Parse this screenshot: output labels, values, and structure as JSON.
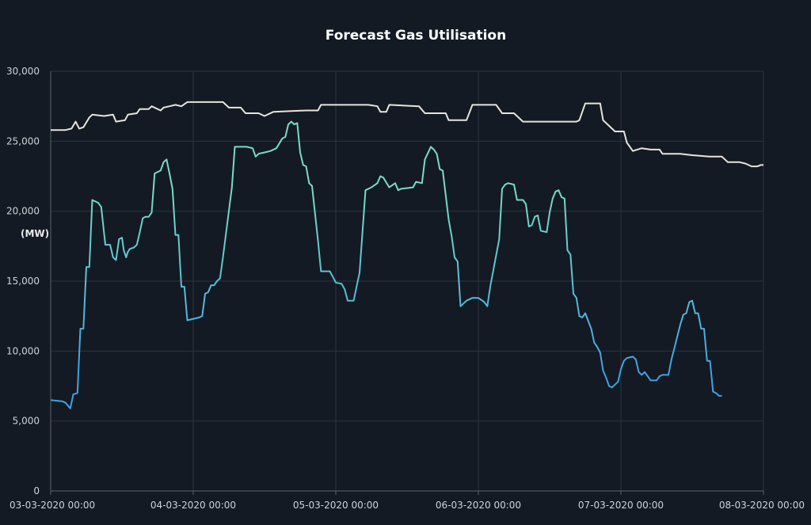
{
  "chart_data": {
    "type": "line",
    "title": "Forecast Gas Utilisation",
    "ylabel": "(MW)",
    "xlabel": "",
    "ylim": [
      0,
      30000
    ],
    "yticks": [
      0,
      5000,
      10000,
      15000,
      20000,
      25000,
      30000
    ],
    "ytick_labels": [
      "0",
      "5,000",
      "10,000",
      "15,000",
      "20,000",
      "25,000",
      "30,000"
    ],
    "xlim": [
      0,
      120
    ],
    "x_unit": "hours from 03-03-2020 00:00",
    "xticks": [
      0,
      24,
      48,
      72,
      96,
      120
    ],
    "xtick_labels": [
      "03-03-2020 00:00",
      "04-03-2020 00:00",
      "05-03-2020 00:00",
      "06-03-2020 00:00",
      "07-03-2020 00:00",
      "08-03-2020 00:00"
    ],
    "grid": true,
    "colors": {
      "background": "#131a24",
      "capacity_line": "#e8e4dc",
      "utilisation_high": "#79dcc4",
      "utilisation_low": "#3fa3e3"
    },
    "series": [
      {
        "points": [
          [
            0,
            25800
          ],
          [
            2.5,
            25800
          ],
          [
            3.5,
            25900
          ],
          [
            4.2,
            26400
          ],
          [
            4.8,
            25900
          ],
          [
            5.5,
            26000
          ],
          [
            6.5,
            26700
          ],
          [
            7,
            26900
          ],
          [
            9,
            26800
          ],
          [
            10.5,
            26900
          ],
          [
            11,
            26400
          ],
          [
            12.5,
            26500
          ],
          [
            13,
            26900
          ],
          [
            14.5,
            27000
          ],
          [
            15,
            27300
          ],
          [
            16.5,
            27300
          ],
          [
            17,
            27500
          ],
          [
            18.5,
            27200
          ],
          [
            19,
            27400
          ],
          [
            20,
            27500
          ],
          [
            21,
            27600
          ],
          [
            22,
            27500
          ],
          [
            23,
            27800
          ],
          [
            29,
            27800
          ],
          [
            30,
            27400
          ],
          [
            32,
            27400
          ],
          [
            32.8,
            27000
          ],
          [
            35,
            27000
          ],
          [
            36,
            26800
          ],
          [
            37.5,
            27100
          ],
          [
            43,
            27200
          ],
          [
            45,
            27200
          ],
          [
            45.5,
            27600
          ],
          [
            53.5,
            27600
          ],
          [
            55,
            27500
          ],
          [
            55.5,
            27100
          ],
          [
            56.5,
            27100
          ],
          [
            57,
            27600
          ],
          [
            62,
            27500
          ],
          [
            63,
            27000
          ],
          [
            66.5,
            27000
          ],
          [
            67,
            26500
          ],
          [
            68.5,
            26500
          ],
          [
            70,
            26500
          ],
          [
            71,
            27600
          ],
          [
            75,
            27600
          ],
          [
            76,
            27000
          ],
          [
            78,
            27000
          ],
          [
            79.5,
            26400
          ],
          [
            88.5,
            26400
          ],
          [
            89,
            26500
          ],
          [
            90,
            27700
          ],
          [
            92.5,
            27700
          ],
          [
            93,
            26500
          ],
          [
            94,
            26100
          ],
          [
            95,
            25700
          ],
          [
            96.5,
            25700
          ],
          [
            97,
            24900
          ],
          [
            98,
            24300
          ],
          [
            99.5,
            24500
          ],
          [
            101,
            24400
          ],
          [
            102.5,
            24400
          ],
          [
            103,
            24100
          ],
          [
            106,
            24100
          ],
          [
            108,
            24000
          ],
          [
            111,
            23900
          ],
          [
            113,
            23900
          ],
          [
            114,
            23500
          ],
          [
            116,
            23500
          ],
          [
            117,
            23400
          ],
          [
            118,
            23200
          ],
          [
            119,
            23200
          ],
          [
            119.5,
            23300
          ],
          [
            120,
            23300
          ]
        ]
      },
      {
        "points": [
          [
            0,
            6500
          ],
          [
            2,
            6400
          ],
          [
            2.5,
            6300
          ],
          [
            3.3,
            5900
          ],
          [
            3.8,
            6900
          ],
          [
            4.5,
            7000
          ],
          [
            5,
            11600
          ],
          [
            5.5,
            11600
          ],
          [
            6,
            16000
          ],
          [
            6.5,
            16000
          ],
          [
            7,
            20800
          ],
          [
            8,
            20600
          ],
          [
            8.5,
            20300
          ],
          [
            9.2,
            17600
          ],
          [
            10,
            17600
          ],
          [
            10.5,
            16700
          ],
          [
            11,
            16500
          ],
          [
            11.5,
            18000
          ],
          [
            12,
            18100
          ],
          [
            12.3,
            17200
          ],
          [
            12.7,
            16700
          ],
          [
            13,
            17100
          ],
          [
            13.3,
            17300
          ],
          [
            14,
            17400
          ],
          [
            14.5,
            17600
          ],
          [
            15,
            18500
          ],
          [
            15.5,
            19500
          ],
          [
            16,
            19600
          ],
          [
            16.5,
            19600
          ],
          [
            17,
            19900
          ],
          [
            17.5,
            22700
          ],
          [
            18.5,
            22900
          ],
          [
            19,
            23500
          ],
          [
            19.5,
            23700
          ],
          [
            20,
            22700
          ],
          [
            20.5,
            21600
          ],
          [
            21,
            18300
          ],
          [
            21.5,
            18300
          ],
          [
            22,
            14600
          ],
          [
            22.5,
            14600
          ],
          [
            23,
            12200
          ],
          [
            25,
            12400
          ],
          [
            25.5,
            12500
          ],
          [
            26,
            14100
          ],
          [
            26.5,
            14200
          ],
          [
            27,
            14700
          ],
          [
            27.5,
            14700
          ],
          [
            28,
            15000
          ],
          [
            28.5,
            15200
          ],
          [
            29,
            16700
          ],
          [
            30.5,
            21700
          ],
          [
            31,
            24600
          ],
          [
            33,
            24600
          ],
          [
            34,
            24500
          ],
          [
            34.5,
            23900
          ],
          [
            35,
            24100
          ],
          [
            36,
            24200
          ],
          [
            37,
            24300
          ],
          [
            38,
            24500
          ],
          [
            39,
            25200
          ],
          [
            39.5,
            25300
          ],
          [
            40,
            26200
          ],
          [
            40.5,
            26400
          ],
          [
            41,
            26200
          ],
          [
            41.5,
            26300
          ],
          [
            42,
            24200
          ],
          [
            42.5,
            23300
          ],
          [
            43,
            23200
          ],
          [
            43.5,
            22000
          ],
          [
            44,
            21800
          ],
          [
            45,
            17900
          ],
          [
            45.5,
            15700
          ],
          [
            47,
            15700
          ],
          [
            47.5,
            15300
          ],
          [
            48,
            14900
          ],
          [
            49,
            14800
          ],
          [
            49.5,
            14400
          ],
          [
            50,
            13600
          ],
          [
            51,
            13600
          ],
          [
            52,
            15600
          ],
          [
            53,
            21500
          ],
          [
            54,
            21700
          ],
          [
            55,
            22000
          ],
          [
            55.5,
            22500
          ],
          [
            56,
            22400
          ],
          [
            57,
            21700
          ],
          [
            58,
            22000
          ],
          [
            58.5,
            21500
          ],
          [
            59,
            21600
          ],
          [
            61,
            21700
          ],
          [
            61.5,
            22100
          ],
          [
            62.5,
            22000
          ],
          [
            63,
            23700
          ],
          [
            64,
            24600
          ],
          [
            64.5,
            24400
          ],
          [
            65,
            24100
          ],
          [
            65.5,
            23000
          ],
          [
            66,
            22900
          ],
          [
            67,
            19400
          ],
          [
            67.5,
            18200
          ],
          [
            68,
            16700
          ],
          [
            68.5,
            16400
          ],
          [
            69,
            13200
          ],
          [
            70,
            13600
          ],
          [
            71,
            13800
          ],
          [
            72,
            13800
          ],
          [
            73,
            13500
          ],
          [
            73.5,
            13200
          ],
          [
            74,
            14600
          ],
          [
            75.5,
            18000
          ],
          [
            76,
            21600
          ],
          [
            76.5,
            21900
          ],
          [
            77,
            22000
          ],
          [
            78,
            21900
          ],
          [
            78.5,
            20800
          ],
          [
            79.5,
            20800
          ],
          [
            80,
            20500
          ],
          [
            80.5,
            18900
          ],
          [
            81,
            19000
          ],
          [
            81.5,
            19600
          ],
          [
            82,
            19700
          ],
          [
            82.5,
            18600
          ],
          [
            83.5,
            18500
          ],
          [
            84,
            19900
          ],
          [
            84.5,
            20900
          ],
          [
            85,
            21400
          ],
          [
            85.5,
            21500
          ],
          [
            86,
            21000
          ],
          [
            86.5,
            20900
          ],
          [
            87,
            17200
          ],
          [
            87.5,
            16900
          ],
          [
            88,
            14100
          ],
          [
            88.5,
            13800
          ],
          [
            89,
            12500
          ],
          [
            89.5,
            12400
          ],
          [
            90,
            12700
          ],
          [
            91,
            11600
          ],
          [
            91.5,
            10600
          ],
          [
            92,
            10300
          ],
          [
            92.5,
            9900
          ],
          [
            93,
            8600
          ],
          [
            93.5,
            8100
          ],
          [
            94,
            7500
          ],
          [
            94.5,
            7400
          ],
          [
            95,
            7600
          ],
          [
            95.5,
            7800
          ],
          [
            96,
            8700
          ],
          [
            96.5,
            9300
          ],
          [
            97,
            9500
          ],
          [
            98,
            9600
          ],
          [
            98.5,
            9400
          ],
          [
            99,
            8500
          ],
          [
            99.5,
            8300
          ],
          [
            100,
            8500
          ],
          [
            100.5,
            8200
          ],
          [
            101,
            7900
          ],
          [
            102,
            7900
          ],
          [
            102.5,
            8200
          ],
          [
            103,
            8300
          ],
          [
            104,
            8300
          ],
          [
            104.5,
            9400
          ],
          [
            105,
            10200
          ],
          [
            106,
            11900
          ],
          [
            106.5,
            12600
          ],
          [
            107,
            12700
          ],
          [
            107.5,
            13500
          ],
          [
            108,
            13600
          ],
          [
            108.5,
            12700
          ],
          [
            109,
            12700
          ],
          [
            109.5,
            11600
          ],
          [
            110,
            11600
          ],
          [
            110.5,
            9300
          ],
          [
            111,
            9300
          ],
          [
            111.5,
            7100
          ],
          [
            112,
            7000
          ],
          [
            112.5,
            6800
          ],
          [
            113,
            6800
          ]
        ]
      }
    ]
  }
}
